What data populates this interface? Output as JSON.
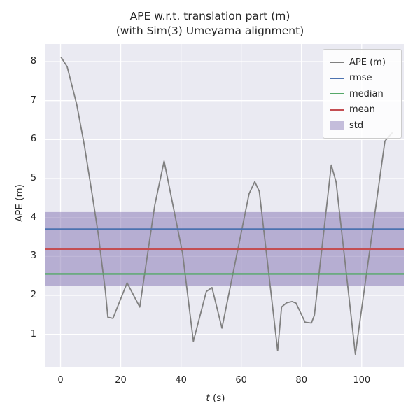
{
  "title": {
    "line1": "APE w.r.t. translation part (m)",
    "line2": "(with Sim(3) Umeyama alignment)"
  },
  "axes": {
    "xlabel": "t (s)",
    "xlabel_var": "t",
    "xlabel_unit": " (s)",
    "ylabel": "APE (m)",
    "xticks": [
      0,
      20,
      40,
      60,
      80,
      100
    ],
    "yticks": [
      1,
      2,
      3,
      4,
      5,
      6,
      7,
      8
    ],
    "xlim": [
      -5,
      114
    ],
    "ylim": [
      0.15,
      8.45
    ],
    "grid": true
  },
  "legend": {
    "position": "upper right",
    "items": [
      {
        "label": "APE (m)",
        "type": "line",
        "color": "#808080"
      },
      {
        "label": "rmse",
        "type": "line",
        "color": "#4c72b0"
      },
      {
        "label": "median",
        "type": "line",
        "color": "#55a868"
      },
      {
        "label": "mean",
        "type": "line",
        "color": "#c44e52"
      },
      {
        "label": "std",
        "type": "patch",
        "color": "#8172b2"
      }
    ]
  },
  "chart_data": {
    "type": "line",
    "title": "APE w.r.t. translation part (m)\n(with Sim(3) Umeyama alignment)",
    "xlabel": "t (s)",
    "ylabel": "APE (m)",
    "xlim": [
      -5,
      114
    ],
    "ylim": [
      0.15,
      8.45
    ],
    "grid": true,
    "legend_position": "upper right",
    "series": [
      {
        "name": "APE (m)",
        "kind": "trajectory-error",
        "color": "#808080",
        "points": [
          [
            0.2,
            8.11
          ],
          [
            2.2,
            7.87
          ],
          [
            5.4,
            6.9
          ],
          [
            7.9,
            5.86
          ],
          [
            10.6,
            4.55
          ],
          [
            12.6,
            3.54
          ],
          [
            13.7,
            2.83
          ],
          [
            14.9,
            2.11
          ],
          [
            15.7,
            1.44
          ],
          [
            17.4,
            1.41
          ],
          [
            22.1,
            2.32
          ],
          [
            26.3,
            1.7
          ],
          [
            31.3,
            4.32
          ],
          [
            34.4,
            5.45
          ],
          [
            40.5,
            3.09
          ],
          [
            44.1,
            0.82
          ],
          [
            48.4,
            2.1
          ],
          [
            50.3,
            2.2
          ],
          [
            53.6,
            1.16
          ],
          [
            62.6,
            4.61
          ],
          [
            64.5,
            4.92
          ],
          [
            66.0,
            4.67
          ],
          [
            72.1,
            0.58
          ],
          [
            73.4,
            1.7
          ],
          [
            75.1,
            1.81
          ],
          [
            76.9,
            1.84
          ],
          [
            78.2,
            1.8
          ],
          [
            81.2,
            1.31
          ],
          [
            83.3,
            1.29
          ],
          [
            84.3,
            1.49
          ],
          [
            89.9,
            5.35
          ],
          [
            91.5,
            4.91
          ],
          [
            97.9,
            0.49
          ],
          [
            107.7,
            5.96
          ],
          [
            110.1,
            6.17
          ]
        ]
      },
      {
        "name": "rmse",
        "kind": "hline",
        "color": "#4c72b0",
        "value": 3.7
      },
      {
        "name": "median",
        "kind": "hline",
        "color": "#55a868",
        "value": 2.55
      },
      {
        "name": "mean",
        "kind": "hline",
        "color": "#c44e52",
        "value": 3.19
      },
      {
        "name": "std",
        "kind": "band",
        "color": "#8172b2",
        "band": [
          2.24,
          4.14
        ]
      }
    ]
  },
  "colors": {
    "plot_background": "#eaeaf2",
    "gridline": "#ffffff",
    "text": "#262626",
    "ape_line": "#808080",
    "rmse_line": "#4c72b0",
    "median_line": "#55a868",
    "mean_line": "#c44e52",
    "std_fill": "#8172b2"
  }
}
